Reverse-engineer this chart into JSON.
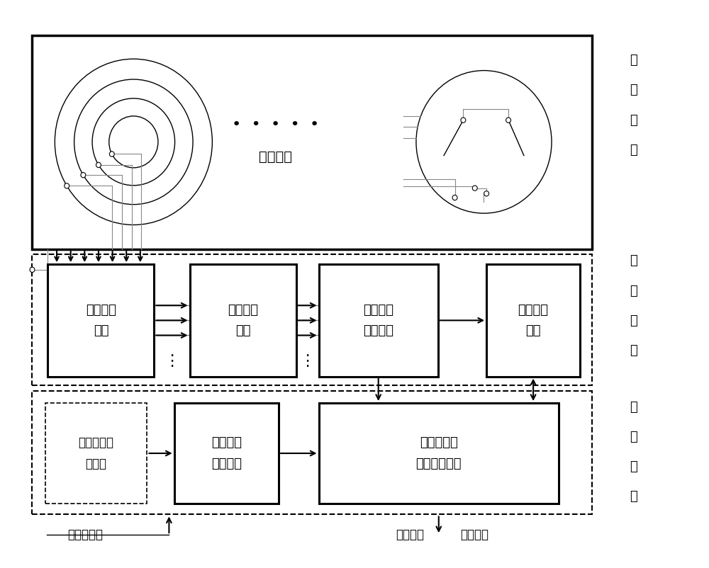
{
  "bg": "#ffffff",
  "lc": "#000000",
  "gc": "#888888",
  "label_collect": [
    "信",
    "息",
    "收",
    "集"
  ],
  "label_process": [
    "信",
    "息",
    "处",
    "理"
  ],
  "label_analyze": [
    "信",
    "息",
    "分",
    "析"
  ],
  "label_antenna": "天线模块",
  "label_box1": "信息调理\n模块",
  "label_box2": "信息采集\n模块",
  "label_box3": "空间差分\n处理模块",
  "label_box4": "信息存储\n模块",
  "label_box5": "航行器控制\n计算机",
  "label_box6": "时间事件\n记录模块",
  "label_box7": "信息分离与\n特征提取模块",
  "label_hull": "航行器壳体",
  "label_health": "健康监测",
  "label_fault": "故障预警"
}
